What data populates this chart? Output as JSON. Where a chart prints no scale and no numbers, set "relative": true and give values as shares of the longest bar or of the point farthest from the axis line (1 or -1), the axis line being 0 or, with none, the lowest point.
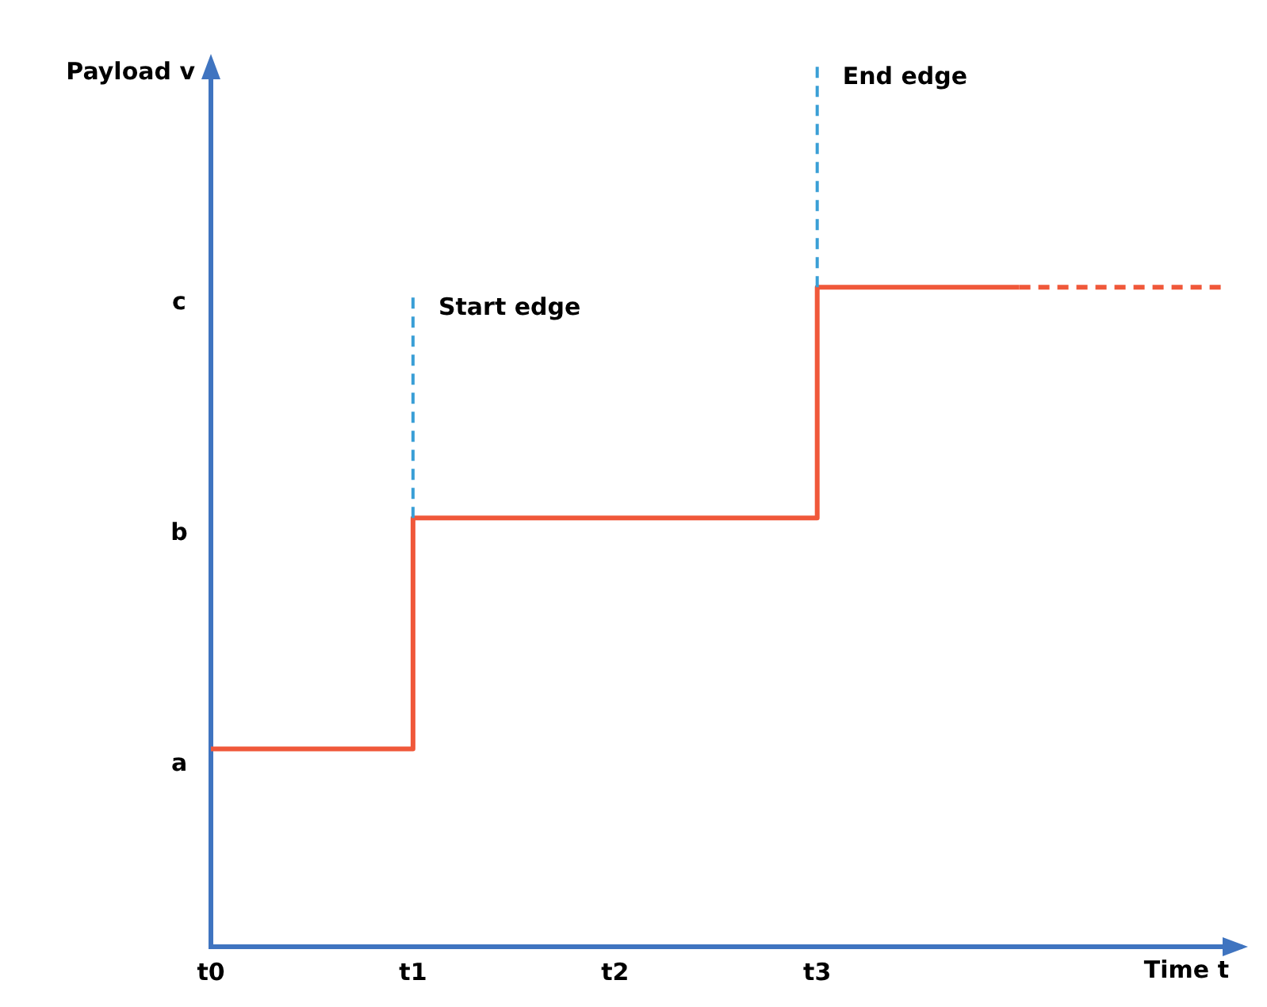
{
  "chart_data": {
    "type": "step",
    "xlabel": "Time t",
    "relative": true,
    "categories": [
      "t0",
      "t1",
      "t2",
      "t3",
      null,
      null
    ],
    "series": [
      {
        "color": "#f0583a",
        "values": [
          0.3,
          0.65,
          0.65,
          1,
          1,
          null
        ],
        "line_style": "solid"
      },
      {
        "color": "#f0583a",
        "values": [
          null,
          null,
          null,
          null,
          1,
          1
        ],
        "line_style": "dashed"
      }
    ],
    "annotations": [
      "a",
      "b",
      "c",
      "Payload v"
    ],
    "ref_lines": [
      {
        "axis": "x",
        "value": "t1",
        "label": "Start edge",
        "color": "#3a9fd6",
        "line_style": "dashed"
      },
      {
        "axis": "x",
        "value": "t3",
        "label": "End edge",
        "color": "#3a9fd6",
        "line_style": "dashed"
      }
    ],
    "grid": false,
    "legend": false,
    "marker": "none"
  }
}
